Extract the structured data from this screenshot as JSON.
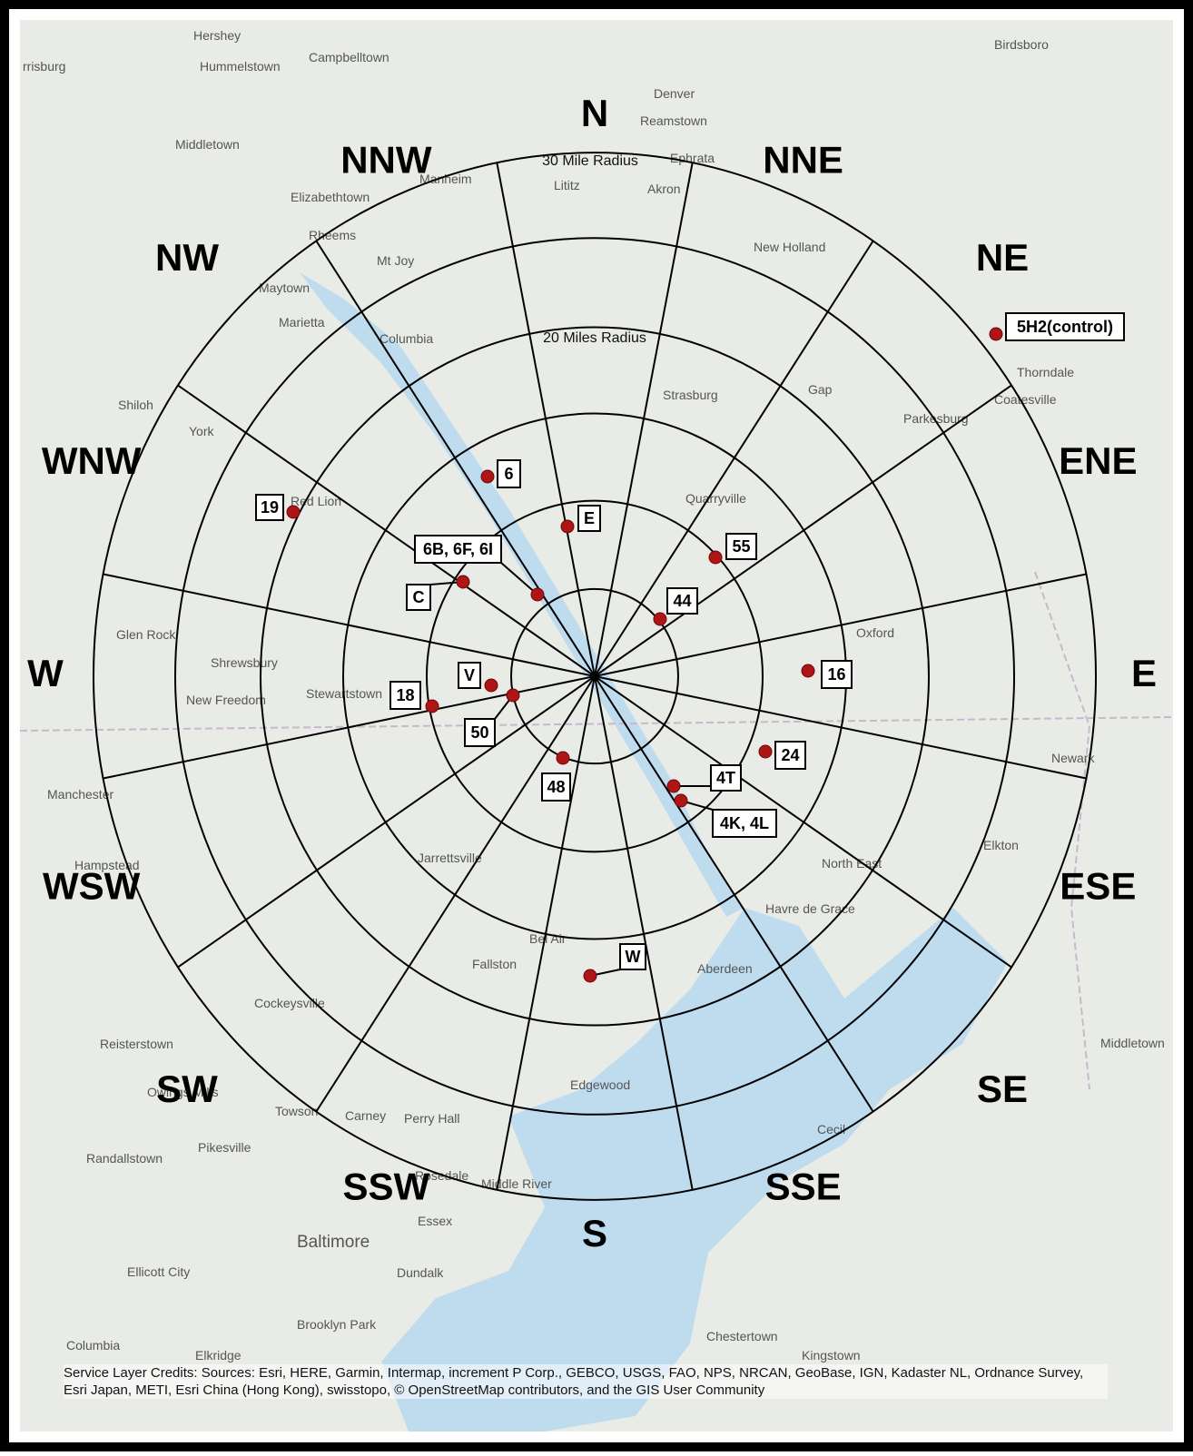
{
  "map": {
    "sectors": [
      "N",
      "NNE",
      "NE",
      "ENE",
      "E",
      "ESE",
      "SE",
      "SSE",
      "S",
      "SSW",
      "SW",
      "WSW",
      "W",
      "WNW",
      "NW",
      "NNW"
    ],
    "radius_labels": [
      "30 Mile Radius",
      "20 Miles Radius"
    ],
    "stations": [
      "5H2(control)",
      "6",
      "E",
      "19",
      "6B, 6F, 6I",
      "C",
      "55",
      "44",
      "16",
      "V",
      "18",
      "50",
      "48",
      "24",
      "4T",
      "4K, 4L",
      "W"
    ],
    "places": [
      "Hershey",
      "rrisburg",
      "Hummelstown",
      "Campbelltown",
      "Birdsboro",
      "Denver",
      "Reamstown",
      "Middletown",
      "Manheim",
      "Lititz",
      "Ephrata",
      "Akron",
      "Elizabethtown",
      "Rheems",
      "Mt Joy",
      "New Holland",
      "Maytown",
      "Marietta",
      "Columbia",
      "Strasburg",
      "Gap",
      "Thorndale",
      "Coatesville",
      "Parkesburg",
      "Shiloh",
      "York",
      "Red Lion",
      "Quarryville",
      "Glen Rock",
      "Oxford",
      "Shrewsbury",
      "New Freedom",
      "Stewartstown",
      "Manchester",
      "Hampstead",
      "Jarrettsville",
      "North East",
      "Elkton",
      "Havre de Grace",
      "Bel Air",
      "Fallston",
      "Aberdeen",
      "Cockeysville",
      "Reisterstown",
      "Owings Mills",
      "Towson",
      "Carney",
      "Perry Hall",
      "Edgewood",
      "Pikesville",
      "Randallstown",
      "Rosedale",
      "Middle River",
      "Essex",
      "Baltimore",
      "Dundalk",
      "Ellicott City",
      "Brooklyn Park",
      "Columbia",
      "Elkridge",
      "Chestertown",
      "Kingstown",
      "Newark",
      "Middletown",
      "Cecil"
    ],
    "credits": "Service Layer Credits: Sources: Esri, HERE, Garmin, Intermap, increment P Corp., GEBCO, USGS, FAO, NPS, NRCAN, GeoBase, IGN, Kadaster NL, Ordnance Survey, Esri Japan, METI, Esri China (Hong Kong), swisstopo, © OpenStreetMap contributors, and the GIS User Community"
  }
}
